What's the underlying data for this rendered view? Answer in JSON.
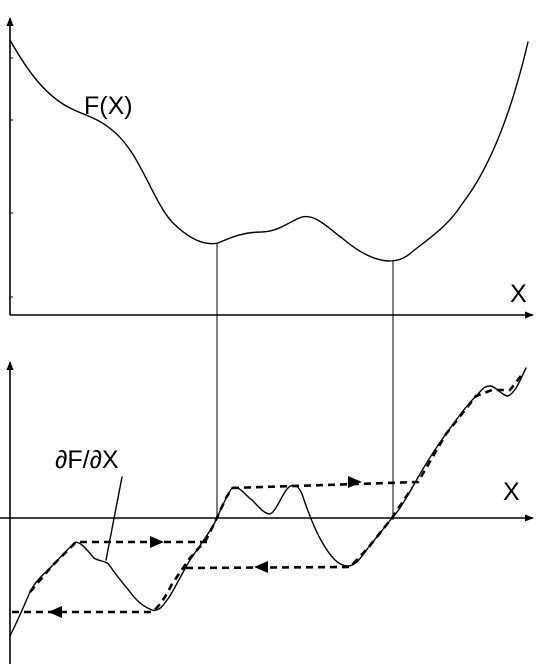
{
  "top_plot": {
    "curve_label": "F(X)",
    "x_axis_label": "X"
  },
  "bottom_plot": {
    "curve_label": "∂F/∂X",
    "x_axis_label": "X"
  }
}
